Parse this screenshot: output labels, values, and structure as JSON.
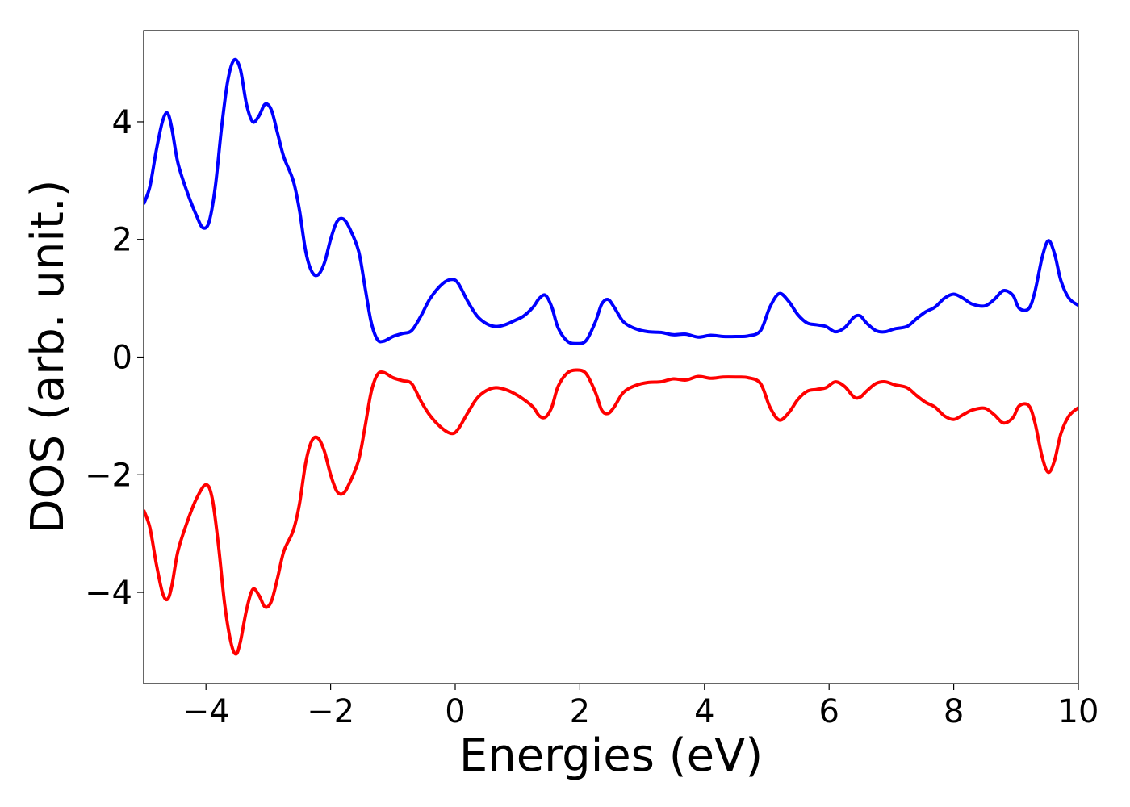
{
  "chart_data": {
    "type": "line",
    "title": "",
    "xlabel": "Energies (eV)",
    "ylabel": "DOS (arb. unit.)",
    "xlim": [
      -5,
      10
    ],
    "ylim": [
      -5.55,
      5.55
    ],
    "grid": false,
    "legend": "none",
    "x_ticks": [
      -4,
      -2,
      0,
      2,
      4,
      6,
      8,
      10
    ],
    "x_tick_labels": [
      "−4",
      "−2",
      "0",
      "2",
      "4",
      "6",
      "8",
      "10"
    ],
    "y_ticks": [
      -4,
      -2,
      0,
      2,
      4
    ],
    "y_tick_labels": [
      "−4",
      "−2",
      "0",
      "2",
      "4"
    ],
    "series": [
      {
        "color": "#0000ff",
        "points": [
          [
            -5.0,
            2.6
          ],
          [
            -4.9,
            2.9
          ],
          [
            -4.8,
            3.5
          ],
          [
            -4.7,
            4.0
          ],
          [
            -4.62,
            4.15
          ],
          [
            -4.55,
            3.9
          ],
          [
            -4.45,
            3.3
          ],
          [
            -4.3,
            2.8
          ],
          [
            -4.15,
            2.4
          ],
          [
            -4.05,
            2.2
          ],
          [
            -3.95,
            2.3
          ],
          [
            -3.85,
            2.9
          ],
          [
            -3.75,
            3.9
          ],
          [
            -3.65,
            4.7
          ],
          [
            -3.55,
            5.05
          ],
          [
            -3.45,
            4.9
          ],
          [
            -3.35,
            4.3
          ],
          [
            -3.25,
            4.0
          ],
          [
            -3.15,
            4.1
          ],
          [
            -3.05,
            4.3
          ],
          [
            -2.95,
            4.2
          ],
          [
            -2.85,
            3.8
          ],
          [
            -2.75,
            3.4
          ],
          [
            -2.6,
            3.0
          ],
          [
            -2.5,
            2.5
          ],
          [
            -2.4,
            1.8
          ],
          [
            -2.3,
            1.45
          ],
          [
            -2.2,
            1.4
          ],
          [
            -2.1,
            1.6
          ],
          [
            -2.0,
            2.0
          ],
          [
            -1.9,
            2.3
          ],
          [
            -1.8,
            2.35
          ],
          [
            -1.7,
            2.2
          ],
          [
            -1.55,
            1.8
          ],
          [
            -1.45,
            1.2
          ],
          [
            -1.35,
            0.6
          ],
          [
            -1.25,
            0.3
          ],
          [
            -1.15,
            0.27
          ],
          [
            -1.0,
            0.35
          ],
          [
            -0.85,
            0.4
          ],
          [
            -0.7,
            0.45
          ],
          [
            -0.55,
            0.7
          ],
          [
            -0.4,
            1.0
          ],
          [
            -0.2,
            1.25
          ],
          [
            -0.05,
            1.32
          ],
          [
            0.05,
            1.25
          ],
          [
            0.2,
            0.95
          ],
          [
            0.35,
            0.7
          ],
          [
            0.5,
            0.57
          ],
          [
            0.65,
            0.52
          ],
          [
            0.8,
            0.55
          ],
          [
            0.95,
            0.62
          ],
          [
            1.1,
            0.7
          ],
          [
            1.25,
            0.85
          ],
          [
            1.35,
            1.0
          ],
          [
            1.45,
            1.05
          ],
          [
            1.55,
            0.85
          ],
          [
            1.65,
            0.5
          ],
          [
            1.8,
            0.27
          ],
          [
            1.95,
            0.23
          ],
          [
            2.1,
            0.28
          ],
          [
            2.25,
            0.6
          ],
          [
            2.35,
            0.9
          ],
          [
            2.45,
            0.98
          ],
          [
            2.55,
            0.85
          ],
          [
            2.7,
            0.6
          ],
          [
            2.9,
            0.48
          ],
          [
            3.1,
            0.43
          ],
          [
            3.3,
            0.42
          ],
          [
            3.5,
            0.38
          ],
          [
            3.7,
            0.39
          ],
          [
            3.9,
            0.34
          ],
          [
            4.1,
            0.37
          ],
          [
            4.3,
            0.35
          ],
          [
            4.5,
            0.35
          ],
          [
            4.7,
            0.36
          ],
          [
            4.9,
            0.45
          ],
          [
            5.05,
            0.85
          ],
          [
            5.2,
            1.08
          ],
          [
            5.35,
            0.95
          ],
          [
            5.5,
            0.72
          ],
          [
            5.65,
            0.58
          ],
          [
            5.8,
            0.55
          ],
          [
            5.95,
            0.52
          ],
          [
            6.1,
            0.43
          ],
          [
            6.25,
            0.5
          ],
          [
            6.4,
            0.68
          ],
          [
            6.5,
            0.7
          ],
          [
            6.6,
            0.58
          ],
          [
            6.75,
            0.45
          ],
          [
            6.9,
            0.43
          ],
          [
            7.05,
            0.48
          ],
          [
            7.25,
            0.52
          ],
          [
            7.4,
            0.65
          ],
          [
            7.55,
            0.77
          ],
          [
            7.7,
            0.85
          ],
          [
            7.85,
            1.0
          ],
          [
            8.0,
            1.07
          ],
          [
            8.15,
            1.0
          ],
          [
            8.3,
            0.9
          ],
          [
            8.5,
            0.87
          ],
          [
            8.65,
            0.98
          ],
          [
            8.8,
            1.13
          ],
          [
            8.95,
            1.05
          ],
          [
            9.05,
            0.83
          ],
          [
            9.2,
            0.82
          ],
          [
            9.3,
            1.1
          ],
          [
            9.42,
            1.7
          ],
          [
            9.52,
            1.98
          ],
          [
            9.62,
            1.75
          ],
          [
            9.72,
            1.3
          ],
          [
            9.85,
            1.0
          ],
          [
            10.0,
            0.88
          ]
        ]
      },
      {
        "color": "#ff0000",
        "points": [
          [
            -5.0,
            -2.6
          ],
          [
            -4.9,
            -2.9
          ],
          [
            -4.8,
            -3.5
          ],
          [
            -4.7,
            -4.0
          ],
          [
            -4.62,
            -4.12
          ],
          [
            -4.55,
            -3.9
          ],
          [
            -4.45,
            -3.3
          ],
          [
            -4.3,
            -2.8
          ],
          [
            -4.15,
            -2.4
          ],
          [
            -4.0,
            -2.17
          ],
          [
            -3.9,
            -2.4
          ],
          [
            -3.8,
            -3.2
          ],
          [
            -3.7,
            -4.2
          ],
          [
            -3.6,
            -4.85
          ],
          [
            -3.52,
            -5.05
          ],
          [
            -3.45,
            -4.85
          ],
          [
            -3.35,
            -4.3
          ],
          [
            -3.25,
            -3.95
          ],
          [
            -3.15,
            -4.05
          ],
          [
            -3.05,
            -4.25
          ],
          [
            -2.95,
            -4.15
          ],
          [
            -2.85,
            -3.75
          ],
          [
            -2.75,
            -3.3
          ],
          [
            -2.6,
            -2.95
          ],
          [
            -2.5,
            -2.5
          ],
          [
            -2.4,
            -1.8
          ],
          [
            -2.3,
            -1.42
          ],
          [
            -2.2,
            -1.38
          ],
          [
            -2.1,
            -1.6
          ],
          [
            -2.0,
            -2.0
          ],
          [
            -1.9,
            -2.28
          ],
          [
            -1.8,
            -2.32
          ],
          [
            -1.7,
            -2.15
          ],
          [
            -1.55,
            -1.75
          ],
          [
            -1.45,
            -1.2
          ],
          [
            -1.35,
            -0.6
          ],
          [
            -1.25,
            -0.3
          ],
          [
            -1.15,
            -0.26
          ],
          [
            -1.0,
            -0.35
          ],
          [
            -0.85,
            -0.4
          ],
          [
            -0.7,
            -0.45
          ],
          [
            -0.55,
            -0.75
          ],
          [
            -0.4,
            -1.0
          ],
          [
            -0.2,
            -1.22
          ],
          [
            -0.05,
            -1.3
          ],
          [
            0.05,
            -1.22
          ],
          [
            0.2,
            -0.95
          ],
          [
            0.35,
            -0.7
          ],
          [
            0.5,
            -0.57
          ],
          [
            0.65,
            -0.52
          ],
          [
            0.8,
            -0.55
          ],
          [
            0.95,
            -0.62
          ],
          [
            1.1,
            -0.72
          ],
          [
            1.25,
            -0.85
          ],
          [
            1.35,
            -1.0
          ],
          [
            1.45,
            -1.02
          ],
          [
            1.55,
            -0.85
          ],
          [
            1.65,
            -0.5
          ],
          [
            1.8,
            -0.27
          ],
          [
            1.95,
            -0.22
          ],
          [
            2.1,
            -0.28
          ],
          [
            2.25,
            -0.6
          ],
          [
            2.35,
            -0.9
          ],
          [
            2.45,
            -0.96
          ],
          [
            2.55,
            -0.85
          ],
          [
            2.7,
            -0.6
          ],
          [
            2.9,
            -0.48
          ],
          [
            3.1,
            -0.43
          ],
          [
            3.3,
            -0.42
          ],
          [
            3.5,
            -0.37
          ],
          [
            3.7,
            -0.39
          ],
          [
            3.9,
            -0.33
          ],
          [
            4.1,
            -0.36
          ],
          [
            4.3,
            -0.34
          ],
          [
            4.5,
            -0.34
          ],
          [
            4.7,
            -0.35
          ],
          [
            4.9,
            -0.45
          ],
          [
            5.05,
            -0.85
          ],
          [
            5.2,
            -1.07
          ],
          [
            5.35,
            -0.95
          ],
          [
            5.5,
            -0.72
          ],
          [
            5.65,
            -0.58
          ],
          [
            5.8,
            -0.55
          ],
          [
            5.95,
            -0.52
          ],
          [
            6.1,
            -0.42
          ],
          [
            6.25,
            -0.5
          ],
          [
            6.4,
            -0.68
          ],
          [
            6.5,
            -0.68
          ],
          [
            6.6,
            -0.58
          ],
          [
            6.75,
            -0.45
          ],
          [
            6.9,
            -0.42
          ],
          [
            7.05,
            -0.47
          ],
          [
            7.25,
            -0.52
          ],
          [
            7.4,
            -0.65
          ],
          [
            7.55,
            -0.77
          ],
          [
            7.7,
            -0.85
          ],
          [
            7.85,
            -1.0
          ],
          [
            8.0,
            -1.06
          ],
          [
            8.15,
            -0.98
          ],
          [
            8.3,
            -0.9
          ],
          [
            8.5,
            -0.87
          ],
          [
            8.65,
            -0.98
          ],
          [
            8.8,
            -1.12
          ],
          [
            8.95,
            -1.03
          ],
          [
            9.05,
            -0.83
          ],
          [
            9.2,
            -0.82
          ],
          [
            9.3,
            -1.1
          ],
          [
            9.42,
            -1.7
          ],
          [
            9.52,
            -1.96
          ],
          [
            9.62,
            -1.75
          ],
          [
            9.72,
            -1.3
          ],
          [
            9.85,
            -1.0
          ],
          [
            10.0,
            -0.86
          ]
        ]
      }
    ]
  }
}
